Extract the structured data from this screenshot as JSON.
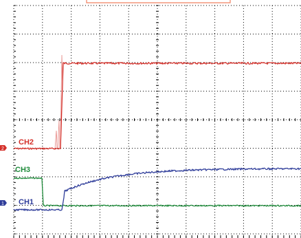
{
  "scope": {
    "channels": [
      {
        "label": "CH1",
        "marker": "1",
        "color": "#2f3d9a",
        "marker_color": "#2f3d9a"
      },
      {
        "label": "CH2",
        "marker": "2",
        "color": "#d4302a",
        "marker_color": "#d4302a"
      },
      {
        "label": "CH3",
        "marker": "",
        "color": "#1e8a3a",
        "marker_color": "#1e8a3a"
      }
    ],
    "trigger_marker_color": "#f08060",
    "grid_color": "#000000",
    "background": "#ffffff"
  }
}
